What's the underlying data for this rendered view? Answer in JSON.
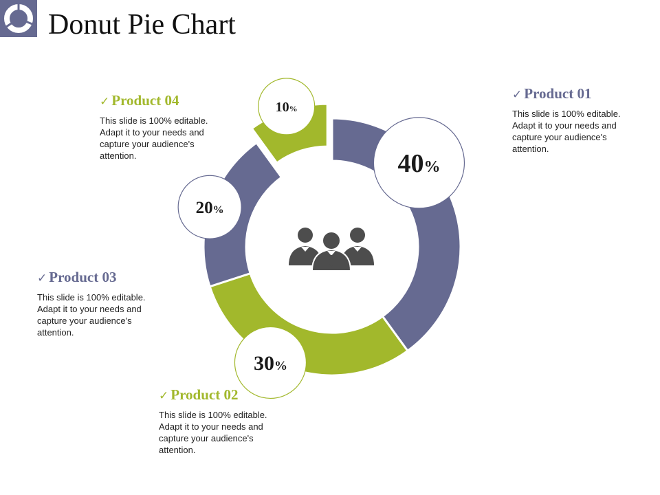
{
  "page": {
    "title": "Donut Pie Chart",
    "logo_icon": "donut-chart-icon",
    "center_icon": "business-team-icon"
  },
  "colors": {
    "purple": "#666a91",
    "green": "#a2b82c",
    "text": "#1a1a1a"
  },
  "chart_data": {
    "type": "pie",
    "variant": "donut",
    "categories": [
      "Product 01",
      "Product 02",
      "Product 03",
      "Product 04"
    ],
    "values": [
      40,
      30,
      20,
      10
    ],
    "unit": "%",
    "series_colors": [
      "#666a91",
      "#a2b82c",
      "#666a91",
      "#a2b82c"
    ],
    "data_labels": [
      "40",
      "30",
      "20",
      "10"
    ],
    "legend": "none"
  },
  "callouts": [
    {
      "title": "Product 01",
      "body": "This slide is 100% editable. Adapt it to your needs and capture your audience's attention.",
      "color": "#666a91"
    },
    {
      "title": "Product 02",
      "body": "This slide is 100% editable. Adapt it to your needs and capture your audience's attention.",
      "color": "#a2b82c"
    },
    {
      "title": "Product 03",
      "body": "This slide is 100% editable. Adapt it to your needs and capture your audience's attention.",
      "color": "#666a91"
    },
    {
      "title": "Product 04",
      "body": "This slide is 100% editable. Adapt it to your needs and capture your audience's attention.",
      "color": "#a2b82c"
    }
  ],
  "check_glyph": "✓",
  "percent_sign": "%"
}
